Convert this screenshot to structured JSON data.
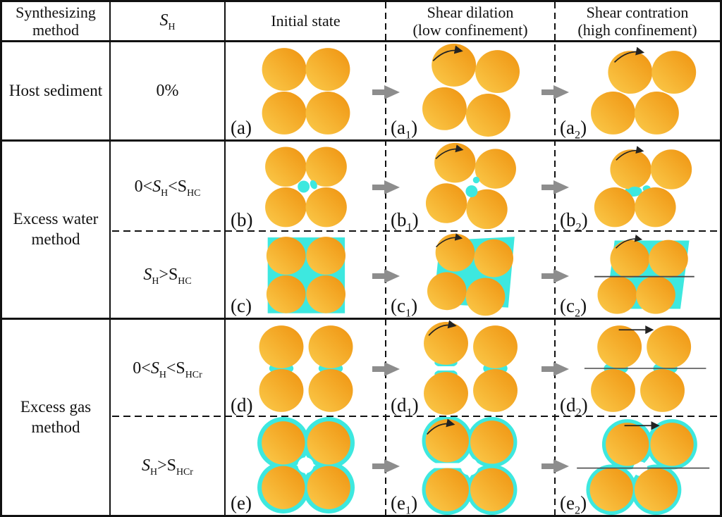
{
  "colors": {
    "particle_light": "#FBCB4B",
    "particle_dark": "#EF9310",
    "hydrate": "#3DE8DF",
    "arrow_gray": "#8D8D8D",
    "line": "#111111"
  },
  "header": {
    "method": "Synthesizing method",
    "sh": [
      {
        "t": "S",
        "i": 1
      },
      {
        "t": "H",
        "s": 1
      }
    ],
    "initial": "Initial state",
    "dilation_line1": "Shear dilation",
    "dilation_line2": "(low confinement)",
    "contraction_line1": "Shear contration",
    "contraction_line2": "(high confinement)"
  },
  "groups": [
    {
      "method": "Host sediment",
      "rows": [
        {
          "sh": [
            {
              "t": "0%"
            }
          ],
          "labels": [
            {
              "pre": "(a",
              "sub": "",
              "post": ")"
            },
            {
              "pre": "(a",
              "sub": "1",
              "post": ")"
            },
            {
              "pre": "(a",
              "sub": "2",
              "post": ")"
            }
          ]
        }
      ]
    },
    {
      "method": "Excess water method",
      "rows": [
        {
          "sh": [
            {
              "t": "0<"
            },
            {
              "t": "S",
              "i": 1
            },
            {
              "t": "H",
              "s": 1
            },
            {
              "t": "<S"
            },
            {
              "t": "HC",
              "s": 1
            }
          ],
          "labels": [
            {
              "pre": "(b",
              "sub": "",
              "post": ")"
            },
            {
              "pre": "(b",
              "sub": "1",
              "post": ")"
            },
            {
              "pre": "(b",
              "sub": "2",
              "post": ")"
            }
          ]
        },
        {
          "sh": [
            {
              "t": "S",
              "i": 1
            },
            {
              "t": "H",
              "s": 1
            },
            {
              "t": ">S"
            },
            {
              "t": "HC",
              "s": 1
            }
          ],
          "labels": [
            {
              "pre": "(c",
              "sub": "",
              "post": ")"
            },
            {
              "pre": "(c",
              "sub": "1",
              "post": ")"
            },
            {
              "pre": "(c",
              "sub": "2",
              "post": ")"
            }
          ]
        }
      ]
    },
    {
      "method": "Excess gas method",
      "rows": [
        {
          "sh": [
            {
              "t": "0<"
            },
            {
              "t": "S",
              "i": 1
            },
            {
              "t": "H",
              "s": 1
            },
            {
              "t": "<S"
            },
            {
              "t": "HCr",
              "s": 1
            }
          ],
          "labels": [
            {
              "pre": "(d",
              "sub": "",
              "post": ")"
            },
            {
              "pre": "(d",
              "sub": "1",
              "post": ")"
            },
            {
              "pre": "(d",
              "sub": "2",
              "post": ")"
            }
          ]
        },
        {
          "sh": [
            {
              "t": "S",
              "i": 1
            },
            {
              "t": "H",
              "s": 1
            },
            {
              "t": ">S"
            },
            {
              "t": "HCr",
              "s": 1
            }
          ],
          "labels": [
            {
              "pre": "(e",
              "sub": "",
              "post": ")"
            },
            {
              "pre": "(e",
              "sub": "1",
              "post": ")"
            },
            {
              "pre": "(e",
              "sub": "2",
              "post": ")"
            }
          ]
        }
      ]
    }
  ]
}
